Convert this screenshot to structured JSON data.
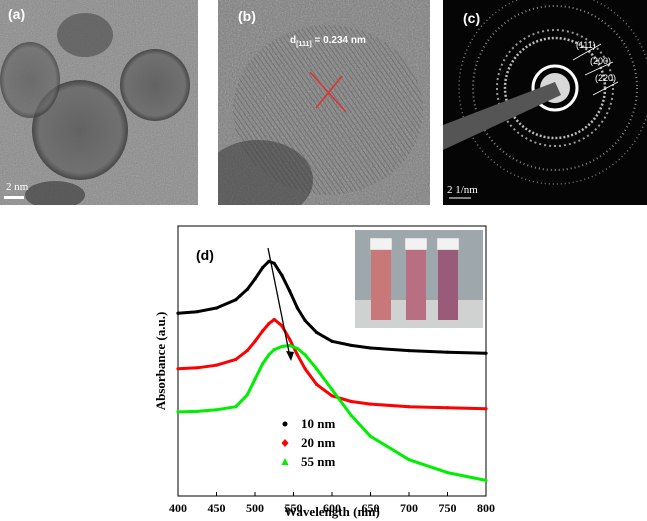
{
  "panels": {
    "a": {
      "label": "(a)",
      "scale": "2 nm"
    },
    "b": {
      "label": "(b)",
      "lattice_label": "d",
      "lattice_sub": "[111]",
      "lattice_value": " = 0.234 nm"
    },
    "c": {
      "label": "(c)",
      "scale": "2 1/nm",
      "rings": [
        "(111)",
        "(200)",
        "(220)"
      ]
    }
  },
  "chart_data": {
    "type": "line",
    "panel_label": "(d)",
    "xlabel": "Wavelength (nm)",
    "ylabel": "Absorbance (a.u.)",
    "xlim": [
      400,
      800
    ],
    "xticks": [
      "400",
      "450",
      "500",
      "550",
      "600",
      "650",
      "700",
      "750",
      "800"
    ],
    "x": [
      400,
      425,
      450,
      475,
      490,
      500,
      510,
      518,
      525,
      535,
      545,
      555,
      565,
      580,
      600,
      625,
      650,
      700,
      750,
      800
    ],
    "series": [
      {
        "name": "10 nm",
        "color": "#000000",
        "marker": "circle",
        "values": [
          3.52,
          3.55,
          3.62,
          3.78,
          3.98,
          4.18,
          4.4,
          4.52,
          4.48,
          4.25,
          3.95,
          3.62,
          3.38,
          3.15,
          2.98,
          2.9,
          2.85,
          2.8,
          2.77,
          2.75
        ]
      },
      {
        "name": "20 nm",
        "color": "#ff0000",
        "marker": "diamond",
        "values": [
          2.45,
          2.47,
          2.52,
          2.63,
          2.8,
          2.98,
          3.18,
          3.32,
          3.4,
          3.28,
          3.02,
          2.72,
          2.45,
          2.15,
          1.93,
          1.82,
          1.77,
          1.72,
          1.7,
          1.68
        ]
      },
      {
        "name": "55 nm",
        "color": "#00ee00",
        "marker": "triangle",
        "values": [
          1.62,
          1.63,
          1.66,
          1.72,
          1.95,
          2.25,
          2.55,
          2.72,
          2.82,
          2.88,
          2.9,
          2.84,
          2.72,
          2.45,
          2.05,
          1.55,
          1.15,
          0.7,
          0.45,
          0.3
        ]
      }
    ],
    "legend_placement": "bottom-center"
  }
}
